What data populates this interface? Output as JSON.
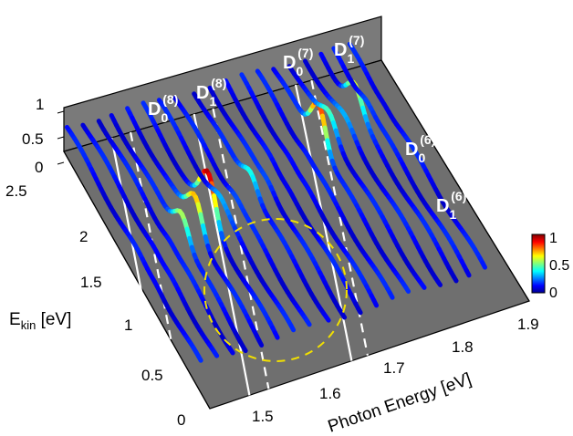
{
  "chart_data": {
    "type": "waterfall-3d",
    "xlabel": "Photon Energy [eV]",
    "ylabel_main": "E",
    "ylabel_sub": "kin",
    "ylabel_unit": " [eV]",
    "x_ticks": [
      "1.5",
      "1.6",
      "1.7",
      "1.8",
      "1.9"
    ],
    "y_ticks": [
      "0",
      "0.5",
      "1",
      "1.5",
      "2",
      "2.5"
    ],
    "z_ticks": [
      "0",
      "0.5",
      "1"
    ],
    "colorbar": {
      "ticks": [
        "1",
        "0.5",
        "0"
      ],
      "colormap": "jet",
      "range": [
        0,
        1
      ]
    },
    "xlim": [
      1.45,
      1.95
    ],
    "ylim": [
      0,
      2.6
    ],
    "zlim": [
      0,
      1
    ],
    "annotations": [
      {
        "name": "D",
        "sub": "0",
        "sup": "(8)",
        "style": "solid",
        "x_at_top": 1.525
      },
      {
        "name": "D",
        "sub": "1",
        "sup": "(8)",
        "style": "dashed",
        "x_at_top": 1.555
      },
      {
        "name": "D",
        "sub": "0",
        "sup": "(7)",
        "style": "solid",
        "x_at_top": 1.655
      },
      {
        "name": "D",
        "sub": "1",
        "sup": "(7)",
        "style": "dashed",
        "x_at_top": 1.685
      },
      {
        "name": "D",
        "sub": "0",
        "sup": "(6)",
        "style": "solid",
        "x_at_top": 1.815
      },
      {
        "name": "D",
        "sub": "1",
        "sup": "(6)",
        "style": "dashed",
        "x_at_top": 1.84
      }
    ],
    "highlight": {
      "shape": "circle",
      "style": "dashed",
      "color": "#f2e000",
      "center_x": 1.56,
      "center_y": 1.1
    },
    "series": [
      {
        "x": 1.455,
        "peak": 0.12,
        "peak_y": 1.1
      },
      {
        "x": 1.48,
        "peak": 0.12,
        "peak_y": 1.2
      },
      {
        "x": 1.505,
        "peak": 0.15,
        "peak_y": 1.3
      },
      {
        "x": 1.525,
        "peak": 0.55,
        "peak_y": 1.35
      },
      {
        "x": 1.55,
        "peak": 0.7,
        "peak_y": 1.4
      },
      {
        "x": 1.575,
        "peak": 0.95,
        "peak_y": 1.45
      },
      {
        "x": 1.6,
        "peak": 0.3,
        "peak_y": 1.5
      },
      {
        "x": 1.625,
        "peak": 0.2,
        "peak_y": 1.5
      },
      {
        "x": 1.655,
        "peak": 0.4,
        "peak_y": 1.6
      },
      {
        "x": 1.68,
        "peak": 0.2,
        "peak_y": 1.6
      },
      {
        "x": 1.705,
        "peak": 0.1,
        "peak_y": 1.6
      },
      {
        "x": 1.73,
        "peak": 0.12,
        "peak_y": 1.6
      },
      {
        "x": 1.755,
        "peak": 0.15,
        "peak_y": 1.7
      },
      {
        "x": 1.78,
        "peak": 0.85,
        "peak_y": 1.8
      },
      {
        "x": 1.805,
        "peak": 0.45,
        "peak_y": 1.9
      },
      {
        "x": 1.83,
        "peak": 0.3,
        "peak_y": 1.9
      },
      {
        "x": 1.855,
        "peak": 0.6,
        "peak_y": 2.0
      },
      {
        "x": 1.875,
        "peak": 0.2,
        "peak_y": 2.0
      },
      {
        "x": 1.9,
        "peak": 0.1,
        "peak_y": 2.0
      }
    ]
  }
}
